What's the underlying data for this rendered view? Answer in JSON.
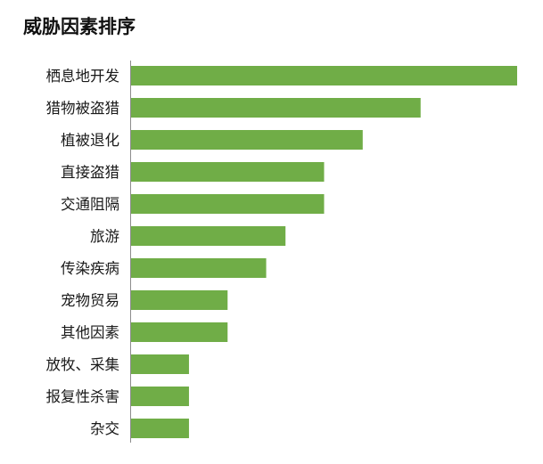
{
  "chart_data": {
    "type": "bar",
    "orientation": "horizontal",
    "title": "威胁因素排序",
    "categories": [
      "栖息地开发",
      "猎物被盗猎",
      "植被退化",
      "直接盗猎",
      "交通阻隔",
      "旅游",
      "传染疾病",
      "宠物贸易",
      "其他因素",
      "放牧、采集",
      "报复性杀害",
      "杂交"
    ],
    "values": [
      10,
      7.5,
      6,
      5,
      5,
      4,
      3.5,
      2.5,
      2.5,
      1.5,
      1.5,
      1.5
    ],
    "xlim": [
      0,
      10
    ],
    "bar_color": "#70ad47",
    "grid": false,
    "legend": "none"
  }
}
